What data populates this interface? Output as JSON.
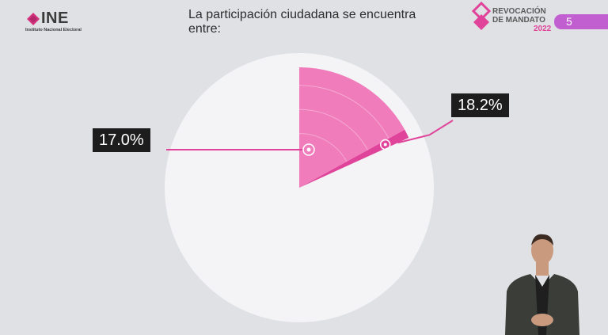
{
  "header": {
    "title": "La participación ciudadana se encuentra entre:",
    "ine_logo": {
      "name": "INE",
      "subtitle": "Instituto Nacional Electoral"
    },
    "event_logo": {
      "line1": "REVOCACIÓN",
      "line2": "DE MANDATO",
      "year": "2022"
    },
    "page_number": "5"
  },
  "colors": {
    "accent": "#e0449a",
    "wedge": "#f07cbc",
    "pie_bg": "#f4f4f6",
    "label_bg": "#1d1d1d"
  },
  "chart_data": {
    "type": "pie",
    "title": "La participación ciudadana se encuentra entre:",
    "range": {
      "low": 17.0,
      "high": 18.2,
      "unit": "%"
    },
    "low_label": "17.0%",
    "high_label": "18.2%",
    "total": 100
  },
  "icons": [
    "ine-logo-icon",
    "revocacion-logo-icon"
  ]
}
